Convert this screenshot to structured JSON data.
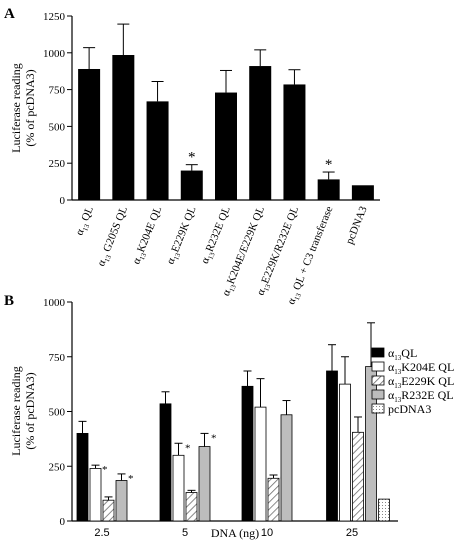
{
  "colors": {
    "black": "#000000",
    "white": "#ffffff",
    "gray": "#bdbdbd",
    "hatch": "#777777"
  },
  "chart_data": [
    {
      "panel": "A",
      "type": "bar",
      "ylabel": "Luciferase reading\n(% of pcDNA3)",
      "ylim": [
        0,
        1250
      ],
      "yticks": [
        0,
        250,
        500,
        750,
        1000,
        1250
      ],
      "categories": [
        {
          "base": "α",
          "sub": "13",
          "rest": " QL"
        },
        {
          "base": "α",
          "sub": "13",
          "rest": " G205S QL"
        },
        {
          "base": "α",
          "sub": "13",
          "rest": "K204E QL"
        },
        {
          "base": "α",
          "sub": "13",
          "rest": "E229K QL"
        },
        {
          "base": "α",
          "sub": "13",
          "rest": "R232E QL"
        },
        {
          "base": "α",
          "sub": "13",
          "rest": "K204E/E229K QL"
        },
        {
          "base": "α",
          "sub": "13",
          "rest": "E229K/R232E QL"
        },
        {
          "base": "α",
          "sub": "13",
          "rest": " QL + C3 transferase"
        },
        {
          "base": "",
          "sub": "",
          "rest": "pcDNA3"
        }
      ],
      "values": [
        890,
        985,
        670,
        200,
        730,
        910,
        785,
        140,
        100
      ],
      "errors": [
        145,
        210,
        135,
        40,
        150,
        110,
        100,
        50,
        0
      ],
      "significance": [
        "",
        "",
        "",
        "*",
        "",
        "",
        "",
        "*",
        ""
      ]
    },
    {
      "panel": "B",
      "type": "bar",
      "xlabel": "DNA (ng)",
      "ylabel": "Luciferase reading\n(% of pcDNA3)",
      "ylim": [
        0,
        1000
      ],
      "yticks": [
        0,
        250,
        500,
        750,
        1000
      ],
      "categories": [
        "2.5",
        "5",
        "10",
        "25"
      ],
      "legend_position": "top-right",
      "series": [
        {
          "name": {
            "base": "α",
            "sub": "13",
            "rest": "QL"
          },
          "fill": "black",
          "values": [
            400,
            535,
            615,
            685
          ],
          "errors": [
            55,
            55,
            70,
            120
          ],
          "significance": [
            "",
            "",
            "",
            ""
          ]
        },
        {
          "name": {
            "base": "α",
            "sub": "13",
            "rest": "K204E QL"
          },
          "fill": "white",
          "values": [
            240,
            300,
            520,
            625
          ],
          "errors": [
            15,
            55,
            130,
            125
          ],
          "significance": [
            "*",
            "*",
            "",
            ""
          ]
        },
        {
          "name": {
            "base": "α",
            "sub": "13",
            "rest": "E229K QL"
          },
          "fill": "hatch",
          "values": [
            95,
            130,
            195,
            405
          ],
          "errors": [
            15,
            10,
            15,
            70
          ],
          "significance": [
            "*",
            "*",
            "*",
            ""
          ]
        },
        {
          "name": {
            "base": "α",
            "sub": "13",
            "rest": "R232E QL"
          },
          "fill": "gray",
          "values": [
            185,
            340,
            485,
            705
          ],
          "errors": [
            30,
            60,
            65,
            200
          ],
          "significance": [
            "*",
            "*",
            "",
            ""
          ]
        },
        {
          "name": {
            "base": "",
            "sub": "",
            "rest": "pcDNA3"
          },
          "fill": "dots",
          "values": [
            null,
            null,
            null,
            100
          ],
          "errors": [
            0,
            0,
            0,
            0
          ],
          "significance": [
            "",
            "",
            "",
            ""
          ]
        }
      ]
    }
  ]
}
